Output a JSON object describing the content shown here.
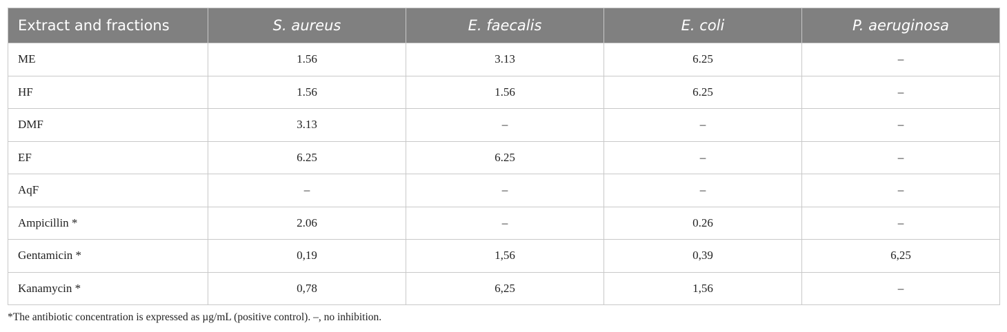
{
  "table": {
    "header": [
      "Extract and fractions",
      "S. aureus",
      "E. faecalis",
      "E. coli",
      "P. aeruginosa"
    ],
    "rows": [
      [
        "ME",
        "1.56",
        "3.13",
        "6.25",
        "–"
      ],
      [
        "HF",
        "1.56",
        "1.56",
        "6.25",
        "–"
      ],
      [
        "DMF",
        "3.13",
        "–",
        "–",
        "–"
      ],
      [
        "EF",
        "6.25",
        "6.25",
        "–",
        "–"
      ],
      [
        "AqF",
        "–",
        "–",
        "–",
        "–"
      ],
      [
        "Ampicillin *",
        "2.06",
        "–",
        "0.26",
        "–"
      ],
      [
        "Gentamicin *",
        "0,19",
        "1,56",
        "0,39",
        "6,25"
      ],
      [
        "Kanamycin *",
        "0,78",
        "6,25",
        "1,56",
        "–"
      ]
    ]
  },
  "footnote": "*The antibiotic concentration is expressed as µg/mL (positive control). –, no inhibition."
}
